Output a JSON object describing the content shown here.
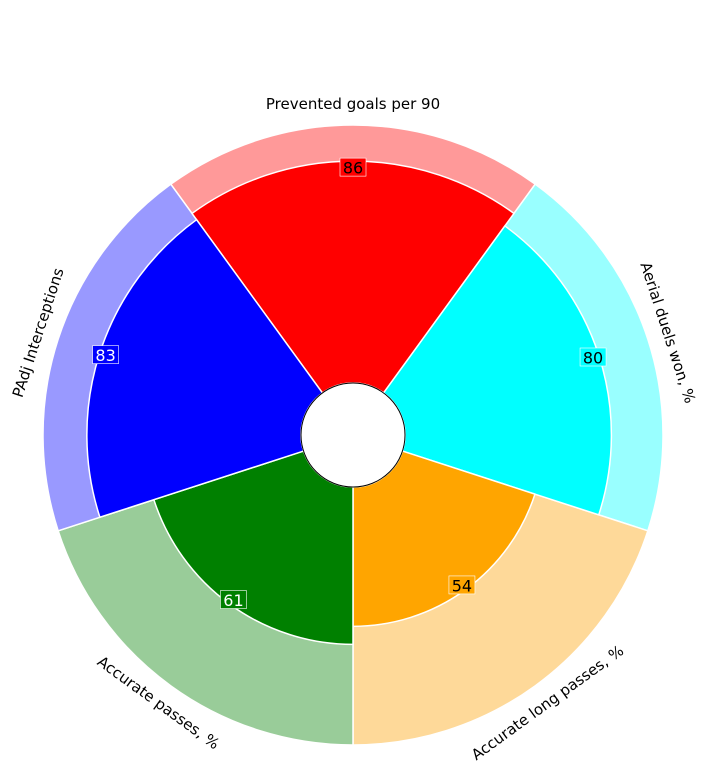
{
  "chart_data": {
    "type": "pie",
    "subtype": "pizza",
    "scale_max": 100,
    "categories": [
      "Prevented goals per 90",
      "Aerial duels won, %",
      "Accurate long passes, %",
      "Accurate passes, %",
      "PAdj Interceptions"
    ],
    "values": [
      86,
      80,
      54,
      61,
      83
    ],
    "colors": [
      "#ff0000",
      "#00ffff",
      "#ffa500",
      "#008000",
      "#0000ff"
    ],
    "background_colors": [
      "#ff9999",
      "#99ffff",
      "#fed999",
      "#99cc99",
      "#9999ff"
    ],
    "value_label_text_colors": [
      "#000000",
      "#000000",
      "#000000",
      "#ffffff",
      "#ffffff"
    ]
  }
}
